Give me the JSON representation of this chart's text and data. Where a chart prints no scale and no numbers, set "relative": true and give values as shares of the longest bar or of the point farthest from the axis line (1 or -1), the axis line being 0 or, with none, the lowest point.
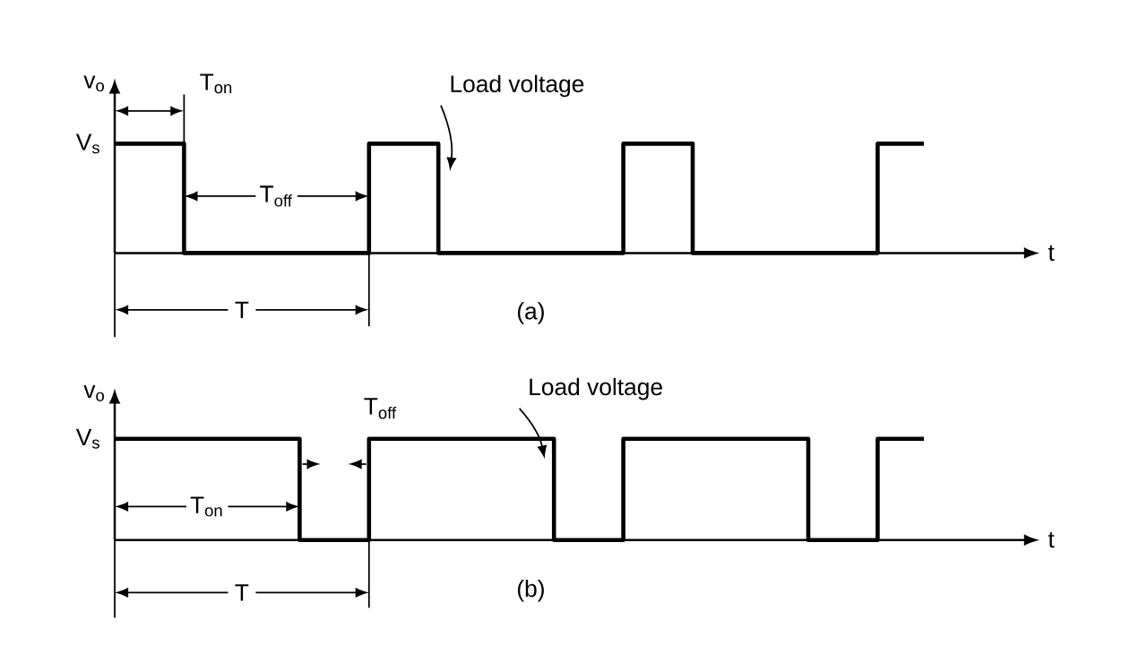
{
  "chart_data": [
    {
      "type": "step",
      "relative": true,
      "xlabel": "t",
      "ylabel": "v$_{o}$",
      "color": "#000000",
      "categories": [
        null,
        null,
        null,
        null,
        null,
        null,
        null,
        null,
        null,
        null,
        null,
        null,
        null,
        null,
        null,
        null,
        null,
        null,
        null,
        null,
        null,
        null,
        null,
        null,
        null,
        null,
        null,
        null,
        null,
        null,
        null,
        null,
        null,
        null,
        null,
        null
      ],
      "values": [
        1,
        1,
        1,
        0,
        0,
        0,
        0,
        0,
        0,
        0,
        0,
        1,
        1,
        1,
        0,
        0,
        0,
        0,
        0,
        0,
        0,
        0,
        1,
        1,
        1,
        0,
        0,
        0,
        0,
        0,
        0,
        0,
        0,
        1,
        1,
        1
      ],
      "annotations": [
        "V$_{s}$",
        "T$_{on}$",
        "T$_{off}$",
        "T",
        "Load voltage",
        "(a)"
      ]
    },
    {
      "type": "step",
      "relative": true,
      "xlabel": "t",
      "ylabel": "v$_{o}$",
      "color": "#000000",
      "categories": [
        null,
        null,
        null,
        null,
        null,
        null,
        null,
        null,
        null,
        null,
        null,
        null,
        null,
        null,
        null,
        null,
        null,
        null,
        null,
        null,
        null,
        null,
        null,
        null,
        null,
        null,
        null,
        null,
        null,
        null,
        null,
        null,
        null,
        null,
        null,
        null
      ],
      "values": [
        1,
        1,
        1,
        1,
        1,
        1,
        1,
        1,
        0,
        0,
        0,
        1,
        1,
        1,
        1,
        1,
        1,
        1,
        1,
        0,
        0,
        0,
        1,
        1,
        1,
        1,
        1,
        1,
        1,
        1,
        0,
        0,
        0,
        1,
        1,
        1
      ],
      "annotations": [
        "V$_{s}$",
        "T$_{on}$",
        "T$_{off}$",
        "T",
        "Load voltage",
        "(b)"
      ]
    }
  ]
}
